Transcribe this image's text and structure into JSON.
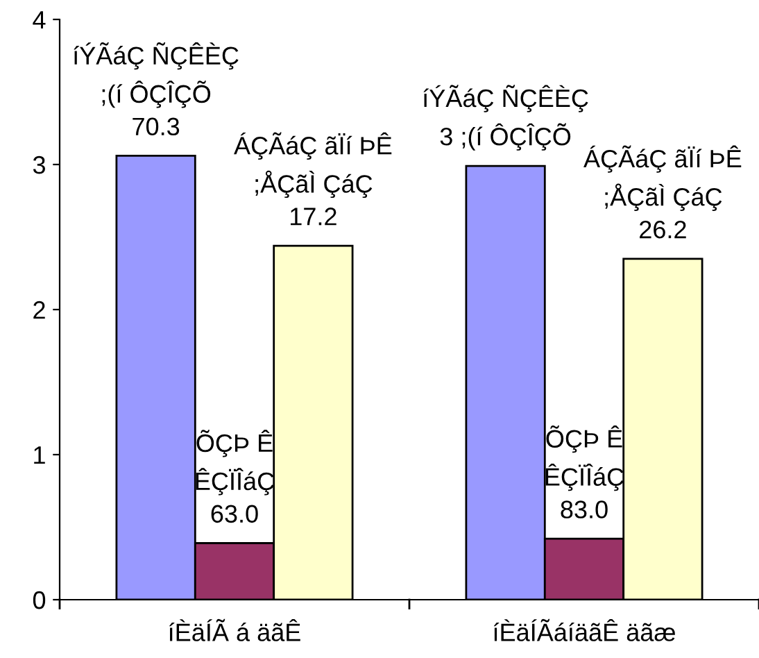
{
  "chart_data": {
    "type": "bar",
    "categories": [
      "íÈäÍÃ á äãÊ",
      "íÈäÍÃáíäãÊ äãæ"
    ],
    "series": [
      {
        "color": "#9999ff",
        "values": [
          3.06,
          2.99
        ],
        "value_labels": [
          "íÝÃáÇ ÑÇÊÈÇ\n;(í ÔÇÎÇÕ\n70.3",
          "íÝÃáÇ ÑÇÊÈÇ\n3 ;(í ÔÇÎÇÕ"
        ]
      },
      {
        "color": "#993366",
        "values": [
          0.39,
          0.42
        ],
        "value_labels": [
          "ÕÇÞ Ê\nÊÇÏÎáÇ\n63.0",
          "ÕÇÞ Ê\nÊÇÏÎáÇ\n83.0"
        ]
      },
      {
        "color": "#ffffcc",
        "values": [
          2.44,
          2.35
        ],
        "value_labels": [
          "ÁÇÃáÇ ãÏí ÞÊ\n;ÅÇãÌ ÇáÇ\n17.2",
          "ÁÇÃáÇ ãÏí ÞÊ\n;ÅÇãÌ ÇáÇ\n26.2"
        ]
      }
    ],
    "ylim": [
      0,
      4
    ],
    "yticks": [
      0,
      1,
      2,
      3,
      4
    ],
    "grid": false,
    "legend": false
  }
}
